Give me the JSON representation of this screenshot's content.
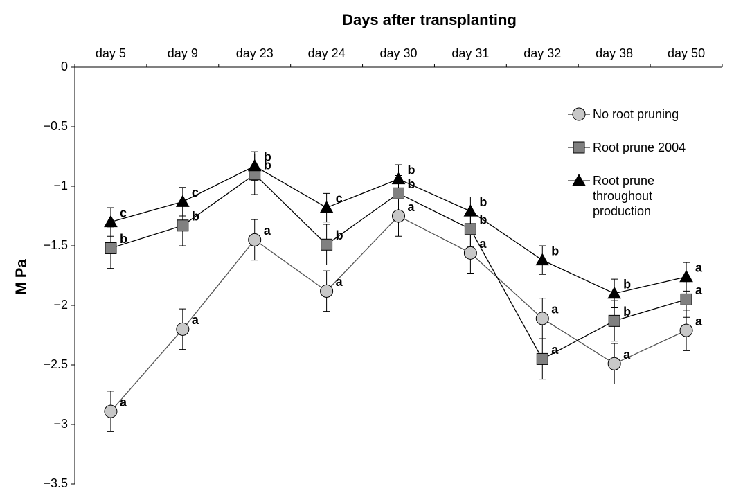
{
  "chart_data": {
    "type": "line",
    "title": "Days after transplanting",
    "y_label": "M Pa",
    "categories": [
      "day 5",
      "day 9",
      "day 23",
      "day 24",
      "day 30",
      "day 31",
      "day 32",
      "day 38",
      "day 50"
    ],
    "ylim": [
      -3.5,
      0
    ],
    "yticks": [
      0,
      {
        "value": -0.5,
        "label": "−0.5"
      },
      {
        "value": -1,
        "label": "−1"
      },
      {
        "value": -1.5,
        "label": "−1.5"
      },
      {
        "value": -2,
        "label": "−2"
      },
      {
        "value": -2.5,
        "label": "−2.5"
      },
      {
        "value": -3,
        "label": "−3"
      },
      {
        "value": -3.5,
        "label": "−3.5"
      }
    ],
    "grid": false,
    "series": [
      {
        "name": "No root pruning",
        "color": "#c8c8c8",
        "marker": "circle",
        "values": [
          -2.89,
          -2.2,
          -1.45,
          -1.88,
          -1.25,
          -1.56,
          -2.11,
          -2.49,
          -2.21
        ],
        "errors": [
          0.17,
          0.17,
          0.17,
          0.17,
          0.17,
          0.17,
          0.17,
          0.17,
          0.17
        ],
        "letters": [
          "a",
          "a",
          "a",
          "a",
          "a",
          "a",
          "a",
          "a",
          "a"
        ]
      },
      {
        "name": "Root prune 2004",
        "color": "#808080",
        "marker": "square",
        "values": [
          -1.52,
          -1.33,
          -0.9,
          -1.49,
          -1.06,
          -1.36,
          -2.45,
          -2.13,
          -1.95
        ],
        "errors": [
          0.17,
          0.17,
          0.17,
          0.17,
          0.15,
          0.15,
          0.17,
          0.17,
          0.15
        ],
        "letters": [
          "b",
          "b",
          "b",
          "b",
          "b",
          "b",
          "a",
          "b",
          "a"
        ]
      },
      {
        "name": "Root prune throughout production",
        "color": "#000000",
        "marker": "triangle",
        "values": [
          -1.3,
          -1.13,
          -0.83,
          -1.18,
          -0.94,
          -1.21,
          -1.62,
          -1.9,
          -1.76
        ],
        "errors": [
          0.12,
          0.12,
          0.12,
          0.12,
          0.12,
          0.12,
          0.12,
          0.12,
          0.12
        ],
        "letters": [
          "c",
          "c",
          "b",
          "c",
          "b",
          "b",
          "b",
          "b",
          "a"
        ]
      }
    ]
  }
}
